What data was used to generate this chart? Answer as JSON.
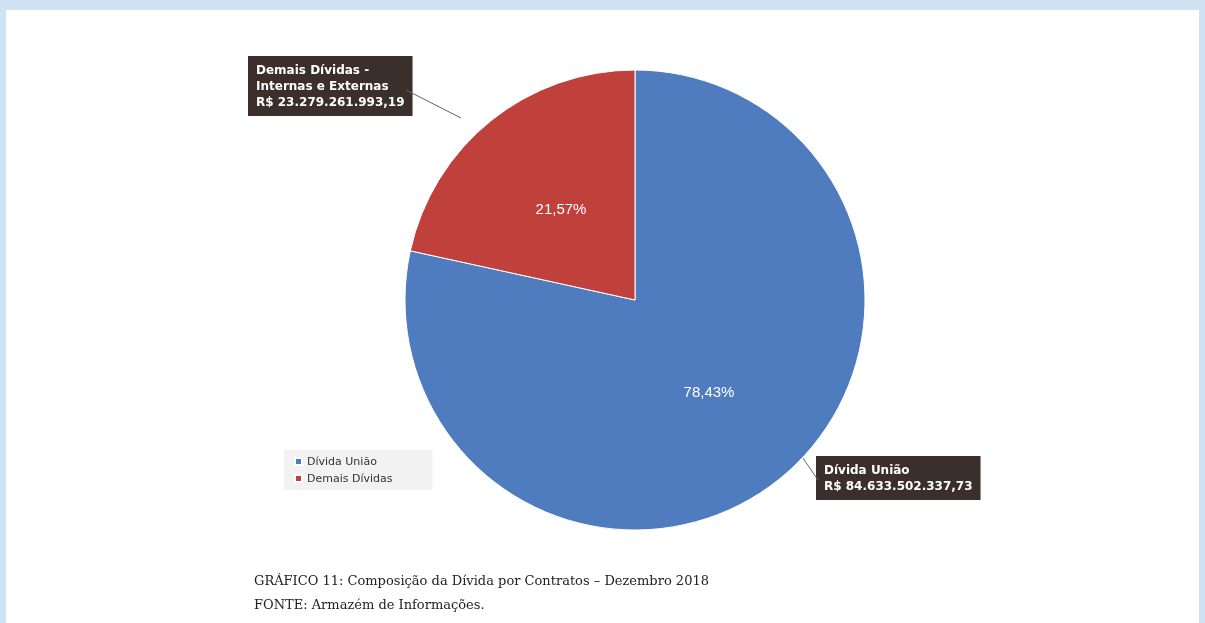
{
  "chart_data": {
    "type": "pie",
    "title": "GRÁFICO 11: Composição da Dívida por Contratos – Dezembro 2018",
    "categories": [
      "Dívida União",
      "Demais Dívidas"
    ],
    "values": [
      78.43,
      21.57
    ],
    "value_labels": [
      "78,43%",
      "21,57%"
    ],
    "colors": [
      "#4f7bbf",
      "#c0413b"
    ],
    "legend": "bottom left",
    "annotations": [
      "Dívida União\nR$ 84.633.502.337,73",
      "Demais Dívidas -\nInternas e Externas\nR$ 23.279.261.993,19",
      "FONTE: Armazém de Informações."
    ]
  }
}
